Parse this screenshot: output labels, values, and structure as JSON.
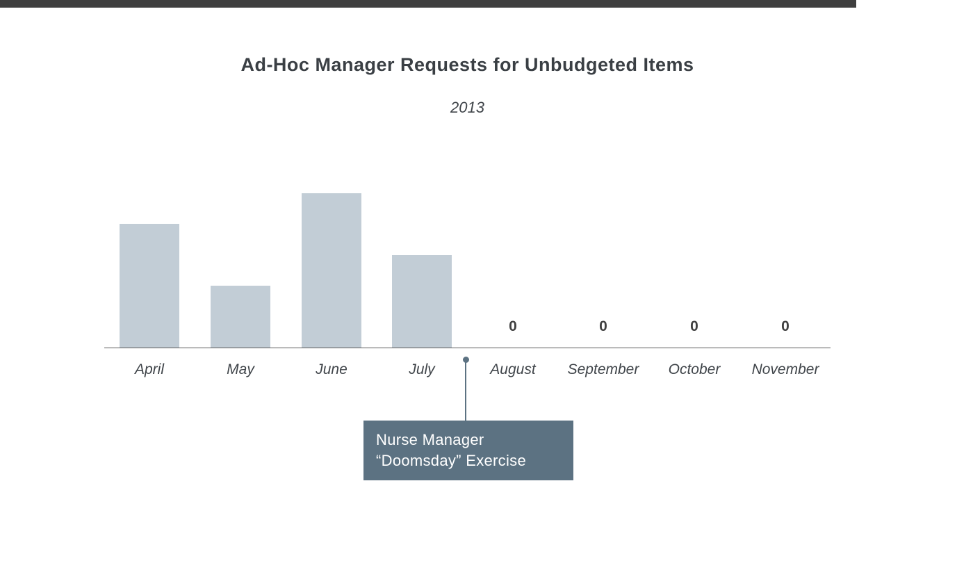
{
  "top_bar": {
    "color": "#3f3f3f"
  },
  "chart_data": {
    "type": "bar",
    "title": "Ad-Hoc Manager Requests for Unbudgeted Items",
    "subtitle": "2013",
    "categories": [
      "April",
      "May",
      "June",
      "July",
      "August",
      "September",
      "October",
      "November"
    ],
    "values": [
      8,
      4,
      10,
      6,
      0,
      0,
      0,
      0
    ],
    "zero_value_labels": [
      "0",
      "0",
      "0",
      "0"
    ],
    "xlabel": "",
    "ylabel": "",
    "ylim": [
      0,
      10
    ],
    "grid": false,
    "legend": false,
    "bar_color": "#c2cdd6",
    "axis_color": "#595959",
    "annotation": {
      "line1": "Nurse Manager",
      "line2": "“Doomsday” Exercise",
      "attached_between": [
        "July",
        "August"
      ],
      "box_color": "#5c7282",
      "text_color": "#ffffff"
    }
  }
}
